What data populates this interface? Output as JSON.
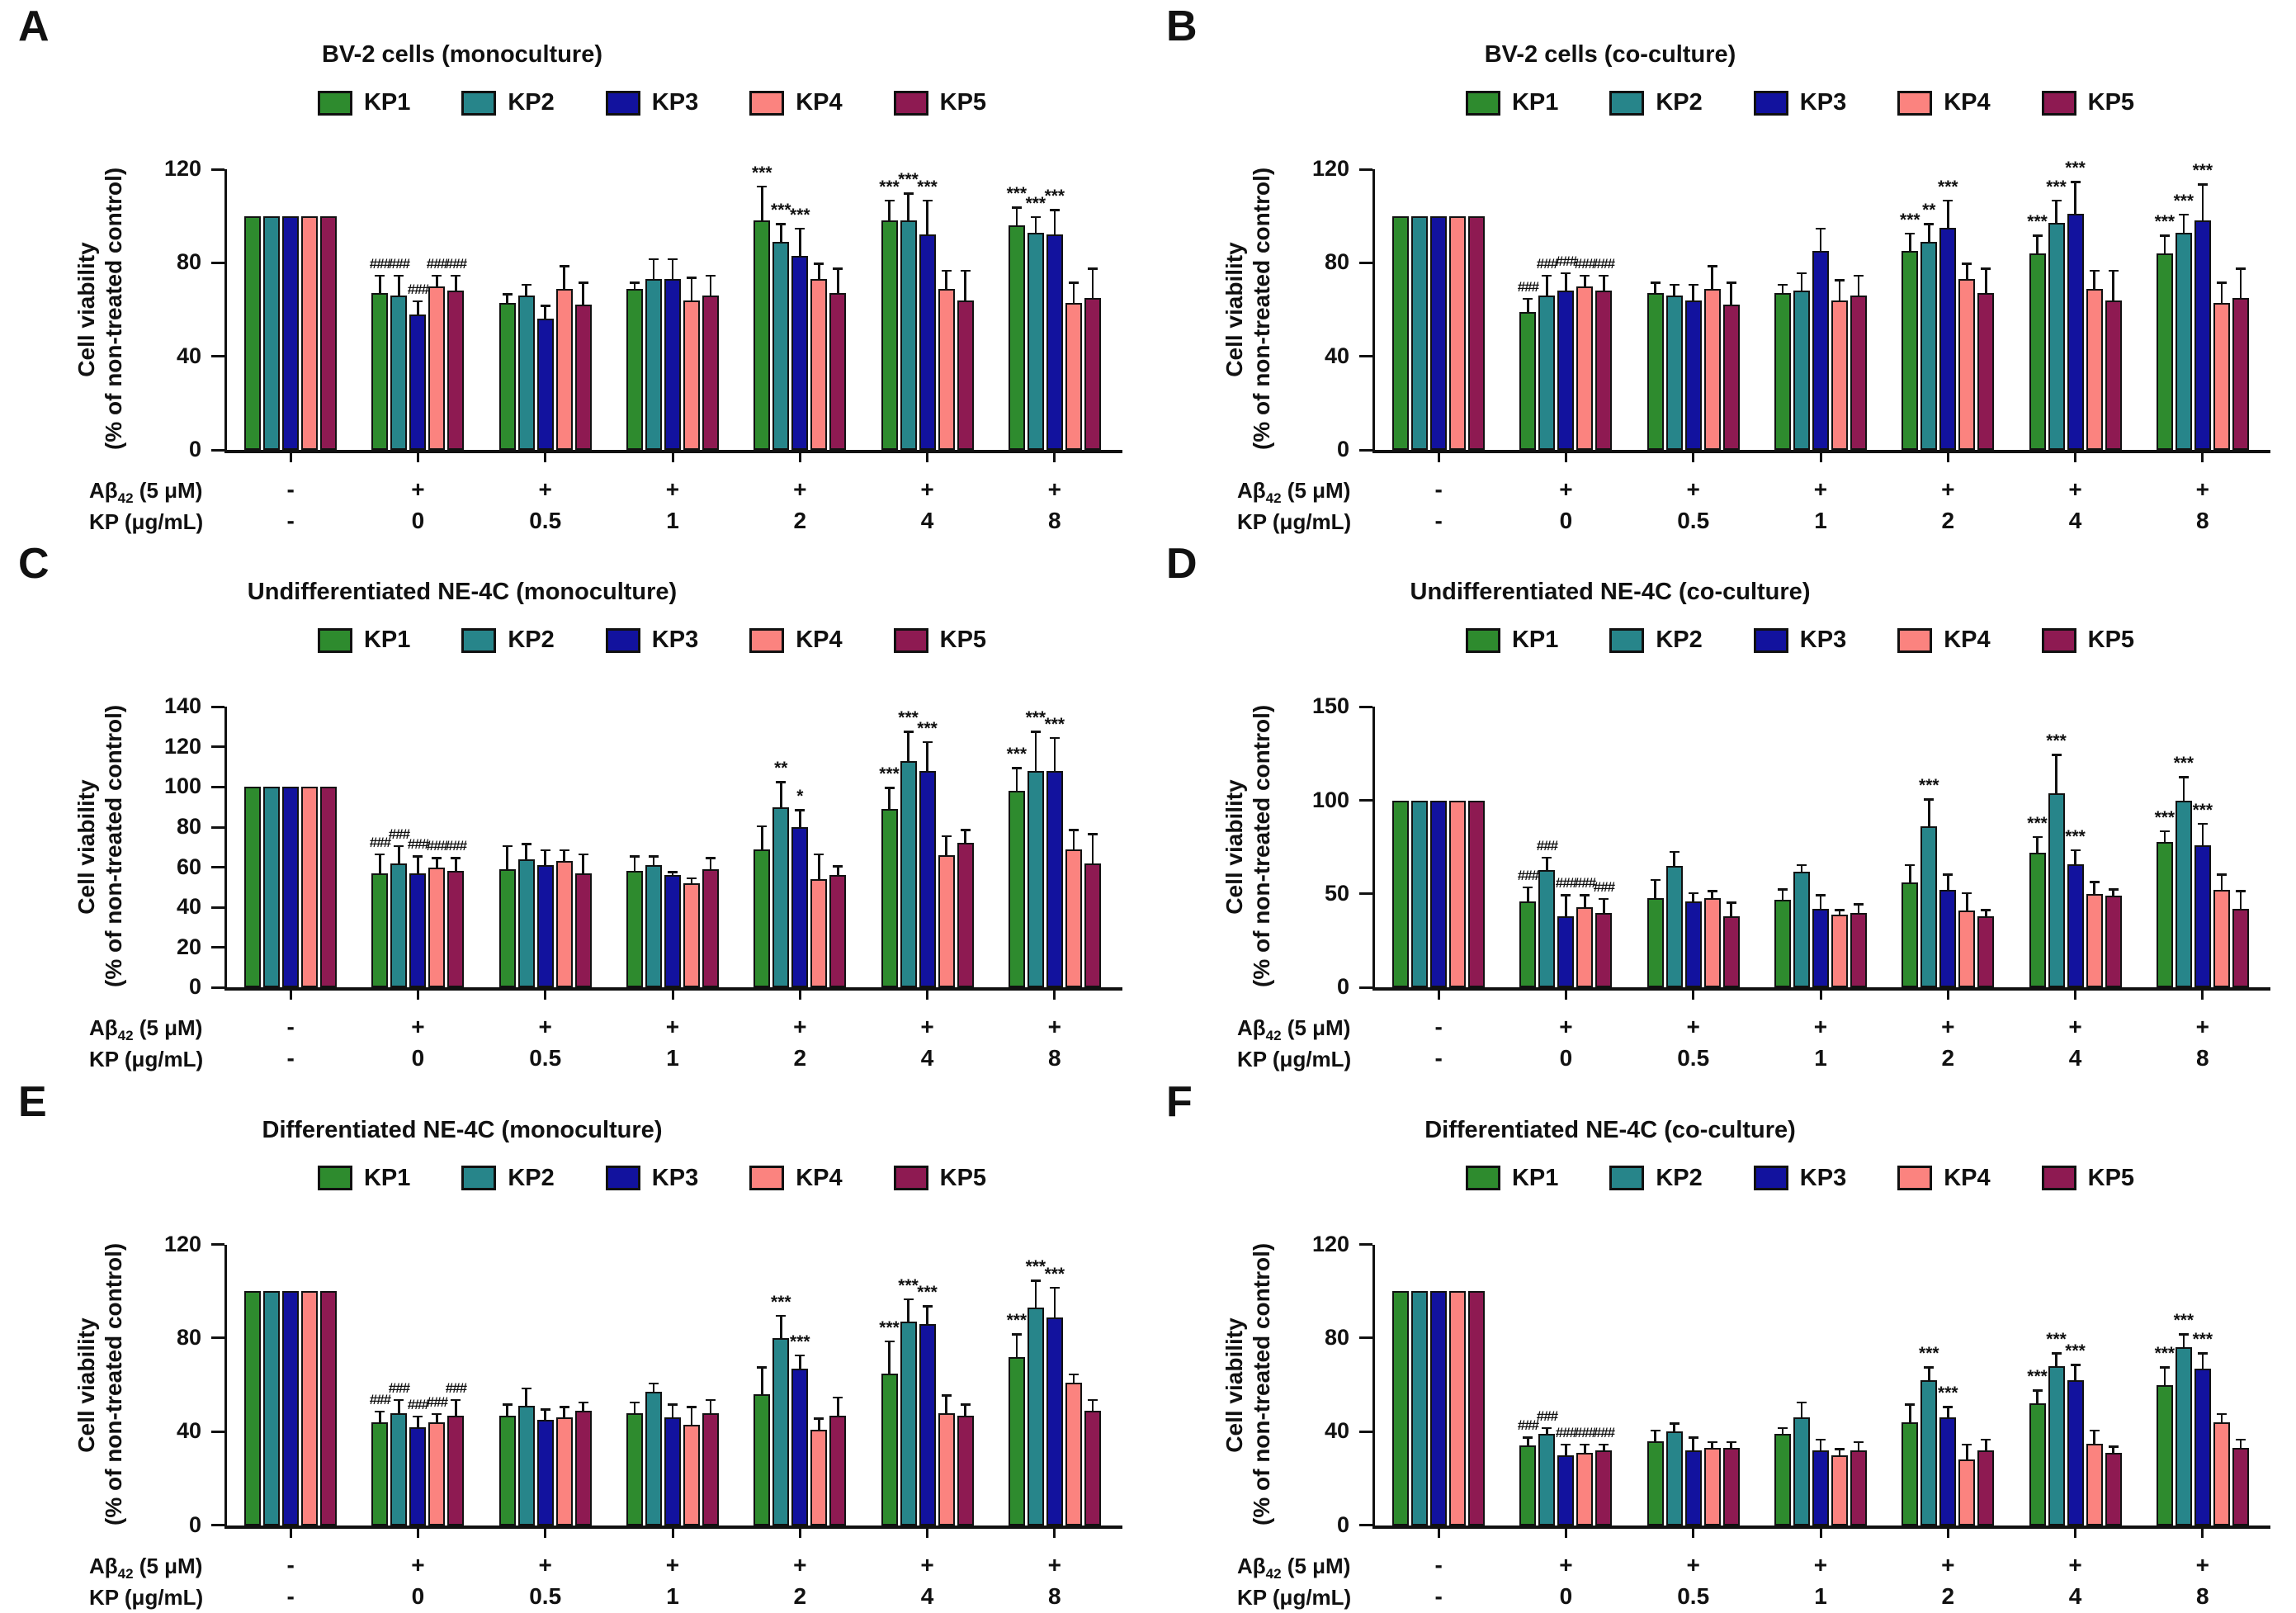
{
  "figure": {
    "background": "#ffffff",
    "series_names": [
      "KP1",
      "KP2",
      "KP3",
      "KP4",
      "KP5"
    ],
    "series_colors": {
      "KP1": "#2e8b2e",
      "KP2": "#27858a",
      "KP3": "#12129e",
      "KP4": "#fb837f",
      "KP5": "#8e1a52"
    },
    "ylabel_line1": "Cell viability",
    "ylabel_line2": "(% of non-treated control)",
    "abeta_label": {
      "pre": "Aβ",
      "sub": "42",
      "post": " (5 μM)"
    },
    "kp_label": "KP (μg/mL)"
  },
  "chart_data": [
    {
      "panel": "A",
      "type": "bar",
      "title": "BV-2 cells (monoculture)",
      "ylabel": "Cell viability (% of non-treated control)",
      "ylim": [
        0,
        120
      ],
      "yticks": [
        0,
        40,
        80,
        120
      ],
      "legend_position": "top",
      "grid": false,
      "abeta_row": [
        "-",
        "+",
        "+",
        "+",
        "+",
        "+",
        "+"
      ],
      "kp_row": [
        "-",
        "0",
        "0.5",
        "1",
        "2",
        "4",
        "8"
      ],
      "series": [
        {
          "name": "KP1",
          "values": [
            100,
            67,
            63,
            69,
            98,
            98,
            96
          ],
          "errors": [
            0,
            8,
            4,
            3,
            15,
            9,
            8
          ],
          "sig": [
            "",
            "###",
            "",
            "",
            "***",
            "***",
            "***"
          ]
        },
        {
          "name": "KP2",
          "values": [
            100,
            66,
            66,
            73,
            89,
            98,
            93
          ],
          "errors": [
            0,
            9,
            5,
            9,
            8,
            12,
            7
          ],
          "sig": [
            "",
            "###",
            "",
            "",
            "***",
            "***",
            "***"
          ]
        },
        {
          "name": "KP3",
          "values": [
            100,
            58,
            56,
            73,
            83,
            92,
            92
          ],
          "errors": [
            0,
            6,
            6,
            9,
            12,
            15,
            11
          ],
          "sig": [
            "",
            "###",
            "",
            "",
            "***",
            "***",
            "***"
          ]
        },
        {
          "name": "KP4",
          "values": [
            100,
            70,
            69,
            64,
            73,
            69,
            63
          ],
          "errors": [
            0,
            5,
            10,
            10,
            7,
            8,
            9
          ],
          "sig": [
            "",
            "###",
            "",
            "",
            "",
            "",
            ""
          ]
        },
        {
          "name": "KP5",
          "values": [
            100,
            68,
            62,
            66,
            67,
            64,
            65
          ],
          "errors": [
            0,
            7,
            10,
            9,
            11,
            13,
            13
          ],
          "sig": [
            "",
            "###",
            "",
            "",
            "",
            "",
            ""
          ]
        }
      ]
    },
    {
      "panel": "B",
      "type": "bar",
      "title": "BV-2 cells (co-culture)",
      "ylabel": "Cell viability (% of non-treated control)",
      "ylim": [
        0,
        120
      ],
      "yticks": [
        0,
        40,
        80,
        120
      ],
      "legend_position": "top",
      "grid": false,
      "abeta_row": [
        "-",
        "+",
        "+",
        "+",
        "+",
        "+",
        "+"
      ],
      "kp_row": [
        "-",
        "0",
        "0.5",
        "1",
        "2",
        "4",
        "8"
      ],
      "series": [
        {
          "name": "KP1",
          "values": [
            100,
            59,
            67,
            67,
            85,
            84,
            84
          ],
          "errors": [
            0,
            6,
            5,
            4,
            8,
            8,
            8
          ],
          "sig": [
            "",
            "###",
            "",
            "",
            "***",
            "***",
            "***"
          ]
        },
        {
          "name": "KP2",
          "values": [
            100,
            66,
            66,
            68,
            89,
            97,
            93
          ],
          "errors": [
            0,
            9,
            5,
            8,
            8,
            10,
            8
          ],
          "sig": [
            "",
            "###",
            "",
            "",
            "**",
            "***",
            "***"
          ]
        },
        {
          "name": "KP3",
          "values": [
            100,
            68,
            64,
            85,
            95,
            101,
            98
          ],
          "errors": [
            0,
            8,
            7,
            10,
            12,
            14,
            16
          ],
          "sig": [
            "",
            "###",
            "",
            "",
            "***",
            "***",
            "***"
          ]
        },
        {
          "name": "KP4",
          "values": [
            100,
            70,
            69,
            64,
            73,
            69,
            63
          ],
          "errors": [
            0,
            5,
            10,
            9,
            7,
            8,
            9
          ],
          "sig": [
            "",
            "###",
            "",
            "",
            "",
            "",
            ""
          ]
        },
        {
          "name": "KP5",
          "values": [
            100,
            68,
            62,
            66,
            67,
            64,
            65
          ],
          "errors": [
            0,
            7,
            10,
            9,
            11,
            13,
            13
          ],
          "sig": [
            "",
            "###",
            "",
            "",
            "",
            "",
            ""
          ]
        }
      ]
    },
    {
      "panel": "C",
      "type": "bar",
      "title": "Undifferentiated NE-4C (monoculture)",
      "ylabel": "Cell viability (% of non-treated control)",
      "ylim": [
        0,
        140
      ],
      "yticks": [
        0,
        20,
        40,
        60,
        80,
        100,
        120,
        140
      ],
      "legend_position": "top",
      "grid": false,
      "abeta_row": [
        "-",
        "+",
        "+",
        "+",
        "+",
        "+",
        "+"
      ],
      "kp_row": [
        "-",
        "0",
        "0.5",
        "1",
        "2",
        "4",
        "8"
      ],
      "series": [
        {
          "name": "KP1",
          "values": [
            100,
            57,
            59,
            58,
            69,
            89,
            98
          ],
          "errors": [
            0,
            10,
            12,
            8,
            12,
            11,
            12
          ],
          "sig": [
            "",
            "###",
            "",
            "",
            "",
            "***",
            "***"
          ]
        },
        {
          "name": "KP2",
          "values": [
            100,
            62,
            64,
            61,
            90,
            113,
            108
          ],
          "errors": [
            0,
            9,
            8,
            5,
            13,
            15,
            20
          ],
          "sig": [
            "",
            "###",
            "",
            "",
            "**",
            "***",
            "***"
          ]
        },
        {
          "name": "KP3",
          "values": [
            100,
            57,
            61,
            56,
            80,
            108,
            108
          ],
          "errors": [
            0,
            9,
            8,
            2,
            9,
            15,
            17
          ],
          "sig": [
            "",
            "###",
            "",
            "",
            "*",
            "***",
            "***"
          ]
        },
        {
          "name": "KP4",
          "values": [
            100,
            60,
            63,
            52,
            54,
            66,
            69
          ],
          "errors": [
            0,
            5,
            6,
            3,
            13,
            10,
            10
          ],
          "sig": [
            "",
            "###",
            "",
            "",
            "",
            "",
            ""
          ]
        },
        {
          "name": "KP5",
          "values": [
            100,
            58,
            57,
            59,
            56,
            72,
            62
          ],
          "errors": [
            0,
            7,
            10,
            6,
            5,
            7,
            15
          ],
          "sig": [
            "",
            "###",
            "",
            "",
            "",
            "",
            ""
          ]
        }
      ]
    },
    {
      "panel": "D",
      "type": "bar",
      "title": "Undifferentiated NE-4C (co-culture)",
      "ylabel": "Cell viability (% of non-treated control)",
      "ylim": [
        0,
        150
      ],
      "yticks": [
        0,
        50,
        100,
        150
      ],
      "legend_position": "top",
      "grid": false,
      "abeta_row": [
        "-",
        "+",
        "+",
        "+",
        "+",
        "+",
        "+"
      ],
      "kp_row": [
        "-",
        "0",
        "0.5",
        "1",
        "2",
        "4",
        "8"
      ],
      "series": [
        {
          "name": "KP1",
          "values": [
            100,
            46,
            48,
            47,
            56,
            72,
            78
          ],
          "errors": [
            0,
            8,
            10,
            6,
            10,
            9,
            6
          ],
          "sig": [
            "",
            "###",
            "",
            "",
            "",
            "***",
            "***"
          ]
        },
        {
          "name": "KP2",
          "values": [
            100,
            63,
            65,
            62,
            86,
            104,
            100
          ],
          "errors": [
            0,
            7,
            8,
            4,
            15,
            21,
            13
          ],
          "sig": [
            "",
            "###",
            "",
            "",
            "***",
            "***",
            "***"
          ]
        },
        {
          "name": "KP3",
          "values": [
            100,
            38,
            46,
            42,
            52,
            66,
            76
          ],
          "errors": [
            0,
            12,
            5,
            8,
            9,
            8,
            12
          ],
          "sig": [
            "",
            "###",
            "",
            "",
            "",
            "***",
            "***"
          ]
        },
        {
          "name": "KP4",
          "values": [
            100,
            43,
            48,
            39,
            41,
            50,
            52
          ],
          "errors": [
            0,
            7,
            4,
            3,
            10,
            7,
            9
          ],
          "sig": [
            "",
            "###",
            "",
            "",
            "",
            "",
            ""
          ]
        },
        {
          "name": "KP5",
          "values": [
            100,
            40,
            38,
            40,
            38,
            49,
            42
          ],
          "errors": [
            0,
            8,
            8,
            5,
            4,
            4,
            10
          ],
          "sig": [
            "",
            "###",
            "",
            "",
            "",
            "",
            ""
          ]
        }
      ]
    },
    {
      "panel": "E",
      "type": "bar",
      "title": "Differentiated NE-4C (monoculture)",
      "ylabel": "Cell viability (% of non-treated control)",
      "ylim": [
        0,
        120
      ],
      "yticks": [
        0,
        40,
        80,
        120
      ],
      "legend_position": "top",
      "grid": false,
      "abeta_row": [
        "-",
        "+",
        "+",
        "+",
        "+",
        "+",
        "+"
      ],
      "kp_row": [
        "-",
        "0",
        "0.5",
        "1",
        "2",
        "4",
        "8"
      ],
      "series": [
        {
          "name": "KP1",
          "values": [
            100,
            44,
            47,
            48,
            56,
            65,
            72
          ],
          "errors": [
            0,
            5,
            5,
            5,
            12,
            14,
            10
          ],
          "sig": [
            "",
            "###",
            "",
            "",
            "",
            "***",
            "***"
          ]
        },
        {
          "name": "KP2",
          "values": [
            100,
            48,
            51,
            57,
            80,
            87,
            93
          ],
          "errors": [
            0,
            6,
            8,
            4,
            10,
            10,
            12
          ],
          "sig": [
            "",
            "###",
            "",
            "",
            "***",
            "***",
            "***"
          ]
        },
        {
          "name": "KP3",
          "values": [
            100,
            42,
            45,
            46,
            67,
            86,
            89
          ],
          "errors": [
            0,
            5,
            5,
            6,
            6,
            8,
            13
          ],
          "sig": [
            "",
            "###",
            "",
            "",
            "***",
            "***",
            "***"
          ]
        },
        {
          "name": "KP4",
          "values": [
            100,
            44,
            46,
            43,
            41,
            48,
            61
          ],
          "errors": [
            0,
            4,
            5,
            8,
            5,
            8,
            4
          ],
          "sig": [
            "",
            "###",
            "",
            "",
            "",
            "",
            ""
          ]
        },
        {
          "name": "KP5",
          "values": [
            100,
            47,
            49,
            48,
            47,
            47,
            49
          ],
          "errors": [
            0,
            7,
            4,
            6,
            8,
            5,
            5
          ],
          "sig": [
            "",
            "###",
            "",
            "",
            "",
            "",
            ""
          ]
        }
      ]
    },
    {
      "panel": "F",
      "type": "bar",
      "title": "Differentiated NE-4C (co-culture)",
      "ylabel": "Cell viability (% of non-treated control)",
      "ylim": [
        0,
        120
      ],
      "yticks": [
        0,
        40,
        80,
        120
      ],
      "legend_position": "top",
      "grid": false,
      "abeta_row": [
        "-",
        "+",
        "+",
        "+",
        "+",
        "+",
        "+"
      ],
      "kp_row": [
        "-",
        "0",
        "0.5",
        "1",
        "2",
        "4",
        "8"
      ],
      "series": [
        {
          "name": "KP1",
          "values": [
            100,
            34,
            36,
            39,
            44,
            52,
            60
          ],
          "errors": [
            0,
            4,
            5,
            3,
            8,
            6,
            8
          ],
          "sig": [
            "",
            "###",
            "",
            "",
            "",
            "***",
            "***"
          ]
        },
        {
          "name": "KP2",
          "values": [
            100,
            39,
            40,
            46,
            62,
            68,
            76
          ],
          "errors": [
            0,
            3,
            4,
            7,
            6,
            6,
            6
          ],
          "sig": [
            "",
            "###",
            "",
            "",
            "***",
            "***",
            "***"
          ]
        },
        {
          "name": "KP3",
          "values": [
            100,
            30,
            32,
            32,
            46,
            62,
            67
          ],
          "errors": [
            0,
            5,
            6,
            5,
            5,
            7,
            7
          ],
          "sig": [
            "",
            "###",
            "",
            "",
            "***",
            "***",
            "***"
          ]
        },
        {
          "name": "KP4",
          "values": [
            100,
            31,
            33,
            30,
            28,
            35,
            44
          ],
          "errors": [
            0,
            4,
            3,
            3,
            7,
            6,
            4
          ],
          "sig": [
            "",
            "###",
            "",
            "",
            "",
            "",
            ""
          ]
        },
        {
          "name": "KP5",
          "values": [
            100,
            32,
            33,
            32,
            32,
            31,
            33
          ],
          "errors": [
            0,
            3,
            3,
            4,
            5,
            3,
            4
          ],
          "sig": [
            "",
            "###",
            "",
            "",
            "",
            "",
            ""
          ]
        }
      ]
    }
  ]
}
